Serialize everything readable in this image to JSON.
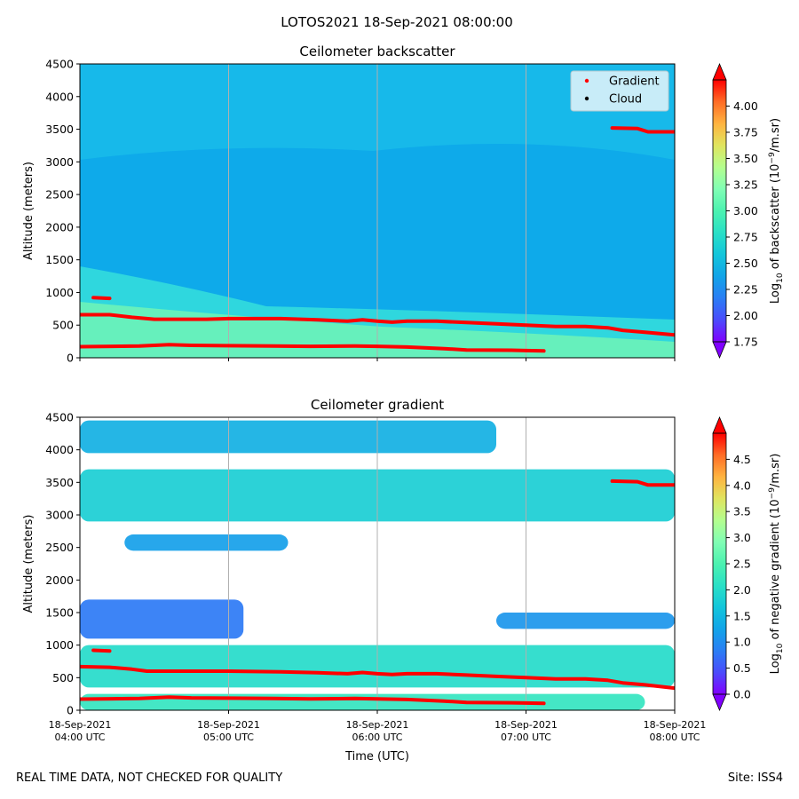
{
  "figure": {
    "suptitle": "LOTOS2021 18-Sep-2021 08:00:00",
    "footer_left": "REAL TIME DATA, NOT CHECKED FOR QUALITY",
    "footer_right": "Site: ISS4"
  },
  "colors": {
    "gradient_marker": "#ff0000",
    "cloud_marker": "#000000",
    "grid": "#b0b0b0",
    "colormap": [
      "#8000ff",
      "#4b4bfc",
      "#2a7ef4",
      "#12a4e8",
      "#13c6db",
      "#2ae0c6",
      "#4cf2b0",
      "#80feb4",
      "#b4fe8e",
      "#e0e45e",
      "#ffb340",
      "#ff6c26",
      "#ff0000"
    ],
    "bg_backscatter": "#0eaaea",
    "bg_backscatter_upper": "#1bbfe9",
    "band_cyan": "#2fd7de",
    "band_green": "#66f0bc"
  },
  "chart_data": [
    {
      "type": "heatmap",
      "title": "Ceilometer backscatter",
      "ylabel": "Altitude (meters)",
      "ylim": [
        0,
        4500
      ],
      "yticks": [
        0,
        500,
        1000,
        1500,
        2000,
        2500,
        3000,
        3500,
        4000,
        4500
      ],
      "xlim_hours": [
        4,
        8
      ],
      "xtick_hours": [
        4,
        5,
        6,
        7,
        8
      ],
      "show_xticklabels": false,
      "grid_x": true,
      "legend": {
        "position": "top-right",
        "entries": [
          {
            "label": "Gradient",
            "color": "#ff0000"
          },
          {
            "label": "Cloud",
            "color": "#000000"
          }
        ]
      },
      "colorbar": {
        "label_main": "Log",
        "label_sub": "10",
        "label_rest": " of backscatter (10",
        "label_sup": "−9",
        "label_end": "/m.sr)",
        "min": 1.75,
        "max": 4.25,
        "ticks": [
          "1.75",
          "2.00",
          "2.25",
          "2.50",
          "2.75",
          "3.00",
          "3.25",
          "3.50",
          "3.75",
          "4.00"
        ]
      },
      "gradient_layers": [
        {
          "name": "boundary-layer-top",
          "points": [
            [
              4.0,
              660
            ],
            [
              4.2,
              660
            ],
            [
              4.35,
              620
            ],
            [
              4.5,
              590
            ],
            [
              4.85,
              590
            ],
            [
              5.0,
              600
            ],
            [
              5.35,
              600
            ],
            [
              5.6,
              580
            ],
            [
              5.8,
              560
            ],
            [
              5.9,
              580
            ],
            [
              6.0,
              560
            ],
            [
              6.1,
              545
            ],
            [
              6.2,
              560
            ],
            [
              6.4,
              560
            ],
            [
              6.6,
              540
            ],
            [
              6.8,
              520
            ],
            [
              7.0,
              500
            ],
            [
              7.2,
              480
            ],
            [
              7.4,
              480
            ],
            [
              7.55,
              460
            ],
            [
              7.65,
              420
            ],
            [
              7.8,
              390
            ],
            [
              8.0,
              350
            ]
          ]
        },
        {
          "name": "surface-layer",
          "points": [
            [
              4.0,
              170
            ],
            [
              4.4,
              180
            ],
            [
              4.6,
              200
            ],
            [
              4.75,
              190
            ],
            [
              5.0,
              185
            ],
            [
              5.3,
              180
            ],
            [
              5.55,
              175
            ],
            [
              5.85,
              180
            ],
            [
              6.0,
              175
            ],
            [
              6.2,
              165
            ],
            [
              6.45,
              140
            ],
            [
              6.6,
              120
            ],
            [
              6.9,
              115
            ],
            [
              7.0,
              110
            ],
            [
              7.12,
              105
            ]
          ]
        },
        {
          "name": "residual-layer",
          "points": [
            [
              4.09,
              920
            ],
            [
              4.2,
              910
            ]
          ]
        },
        {
          "name": "upper-layer",
          "points": [
            [
              7.58,
              3520
            ],
            [
              7.75,
              3510
            ],
            [
              7.82,
              3460
            ],
            [
              8.0,
              3460
            ]
          ]
        }
      ]
    },
    {
      "type": "heatmap",
      "title": "Ceilometer gradient",
      "ylabel": "Altitude (meters)",
      "xlabel": "Time (UTC)",
      "ylim": [
        0,
        4500
      ],
      "yticks": [
        0,
        500,
        1000,
        1500,
        2000,
        2500,
        3000,
        3500,
        4000,
        4500
      ],
      "xlim_hours": [
        4,
        8
      ],
      "xtick_hours": [
        4,
        5,
        6,
        7,
        8
      ],
      "xticklabels": [
        {
          "date": "18-Sep-2021",
          "time": "04:00 UTC"
        },
        {
          "date": "18-Sep-2021",
          "time": "05:00 UTC"
        },
        {
          "date": "18-Sep-2021",
          "time": "06:00 UTC"
        },
        {
          "date": "18-Sep-2021",
          "time": "07:00 UTC"
        },
        {
          "date": "18-Sep-2021",
          "time": "08:00 UTC"
        }
      ],
      "grid_x": true,
      "colorbar": {
        "label_main": "Log",
        "label_sub": "10",
        "label_rest": " of negative gradient (10",
        "label_sup": "−9",
        "label_end": "/m.sr)",
        "min": 0.0,
        "max": 5.0,
        "ticks": [
          "0.0",
          "0.5",
          "1.0",
          "1.5",
          "2.0",
          "2.5",
          "3.0",
          "3.5",
          "4.0",
          "4.5"
        ]
      },
      "cloud_bands": [
        {
          "name": "top-band",
          "t0": 4.0,
          "t1": 6.8,
          "z0": 3950,
          "z1": 4450,
          "level": 1.4
        },
        {
          "name": "upper-band",
          "t0": 4.0,
          "t1": 8.0,
          "z0": 2900,
          "z1": 3700,
          "level": 1.8
        },
        {
          "name": "mid-patches",
          "t0": 4.3,
          "t1": 5.4,
          "z0": 2450,
          "z1": 2700,
          "level": 1.2
        },
        {
          "name": "residual-band",
          "t0": 4.0,
          "t1": 5.1,
          "z0": 1100,
          "z1": 1700,
          "level": 0.8
        },
        {
          "name": "right-band",
          "t0": 6.8,
          "t1": 8.0,
          "z0": 1250,
          "z1": 1500,
          "level": 1.1
        },
        {
          "name": "boundary-band",
          "t0": 4.0,
          "t1": 8.0,
          "z0": 350,
          "z1": 1000,
          "level": 2.0
        },
        {
          "name": "surface-band",
          "t0": 4.0,
          "t1": 7.8,
          "z0": 0,
          "z1": 250,
          "level": 2.2
        }
      ],
      "gradient_layers": [
        {
          "name": "boundary-layer-top",
          "points": [
            [
              4.0,
              670
            ],
            [
              4.2,
              660
            ],
            [
              4.35,
              630
            ],
            [
              4.45,
              600
            ],
            [
              4.85,
              600
            ],
            [
              5.0,
              600
            ],
            [
              5.35,
              590
            ],
            [
              5.6,
              575
            ],
            [
              5.8,
              560
            ],
            [
              5.9,
              580
            ],
            [
              6.0,
              560
            ],
            [
              6.1,
              550
            ],
            [
              6.2,
              560
            ],
            [
              6.4,
              560
            ],
            [
              6.6,
              540
            ],
            [
              6.8,
              520
            ],
            [
              7.0,
              500
            ],
            [
              7.2,
              480
            ],
            [
              7.4,
              480
            ],
            [
              7.55,
              460
            ],
            [
              7.65,
              420
            ],
            [
              7.8,
              390
            ],
            [
              8.0,
              340
            ]
          ]
        },
        {
          "name": "surface-layer",
          "points": [
            [
              4.0,
              170
            ],
            [
              4.4,
              180
            ],
            [
              4.6,
              200
            ],
            [
              4.75,
              190
            ],
            [
              5.0,
              185
            ],
            [
              5.3,
              180
            ],
            [
              5.55,
              175
            ],
            [
              5.85,
              180
            ],
            [
              6.0,
              175
            ],
            [
              6.2,
              165
            ],
            [
              6.45,
              140
            ],
            [
              6.6,
              120
            ],
            [
              6.9,
              115
            ],
            [
              7.0,
              110
            ],
            [
              7.12,
              105
            ]
          ]
        },
        {
          "name": "residual-layer",
          "points": [
            [
              4.09,
              920
            ],
            [
              4.2,
              910
            ]
          ]
        },
        {
          "name": "upper-layer",
          "points": [
            [
              7.58,
              3520
            ],
            [
              7.75,
              3510
            ],
            [
              7.82,
              3460
            ],
            [
              8.0,
              3460
            ]
          ]
        }
      ]
    }
  ]
}
